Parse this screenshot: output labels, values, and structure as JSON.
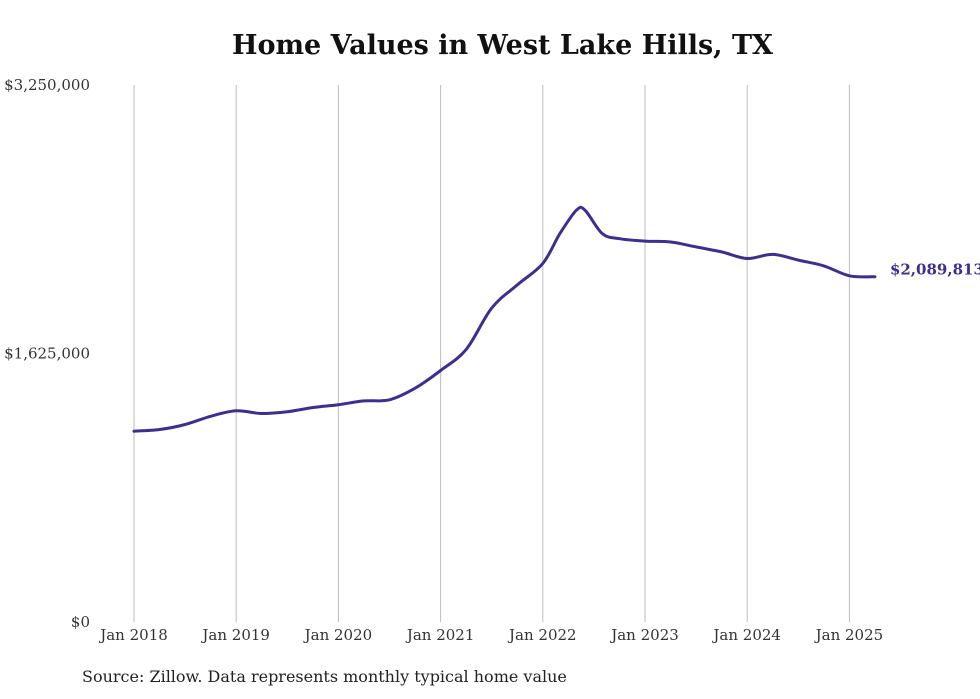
{
  "title": "Home Values in West Lake Hills, TX",
  "source": "Source: Zillow. Data represents monthly typical home value",
  "colors": {
    "line": "#3b2f8f",
    "grid": "#bdbdbd",
    "text": "#333333"
  },
  "chart_data": {
    "type": "line",
    "title": "Home Values in West Lake Hills, TX",
    "xlabel": "",
    "ylabel": "",
    "ylim": [
      0,
      3250000
    ],
    "xlim": [
      "2018-01",
      "2025-04"
    ],
    "y_ticks": [
      {
        "value": 0,
        "label": "$0"
      },
      {
        "value": 1625000,
        "label": "$1,625,000"
      },
      {
        "value": 3250000,
        "label": "$3,250,000"
      }
    ],
    "x_ticks": [
      {
        "value": "2018-01",
        "label": "Jan 2018"
      },
      {
        "value": "2019-01",
        "label": "Jan 2019"
      },
      {
        "value": "2020-01",
        "label": "Jan 2020"
      },
      {
        "value": "2021-01",
        "label": "Jan 2021"
      },
      {
        "value": "2022-01",
        "label": "Jan 2022"
      },
      {
        "value": "2023-01",
        "label": "Jan 2023"
      },
      {
        "value": "2024-01",
        "label": "Jan 2024"
      },
      {
        "value": "2025-01",
        "label": "Jan 2025"
      }
    ],
    "grid": {
      "vertical": true,
      "horizontal": false
    },
    "end_label": "$2,089,813",
    "series": [
      {
        "x": [
          "2018-01",
          "2018-04",
          "2018-07",
          "2018-10",
          "2019-01",
          "2019-04",
          "2019-07",
          "2019-10",
          "2020-01",
          "2020-04",
          "2020-07",
          "2020-10",
          "2021-01",
          "2021-04",
          "2021-07",
          "2021-10",
          "2022-01",
          "2022-03",
          "2022-05",
          "2022-06",
          "2022-08",
          "2022-10",
          "2023-01",
          "2023-04",
          "2023-07",
          "2023-10",
          "2024-01",
          "2024-04",
          "2024-07",
          "2024-10",
          "2025-01",
          "2025-04"
        ],
        "y": [
          1155000,
          1165000,
          1195000,
          1245000,
          1278000,
          1262000,
          1272000,
          1298000,
          1315000,
          1338000,
          1345000,
          1415000,
          1522000,
          1650000,
          1900000,
          2040000,
          2170000,
          2350000,
          2495000,
          2490000,
          2350000,
          2320000,
          2305000,
          2300000,
          2270000,
          2240000,
          2200000,
          2225000,
          2190000,
          2155000,
          2095000,
          2089813
        ]
      }
    ]
  }
}
